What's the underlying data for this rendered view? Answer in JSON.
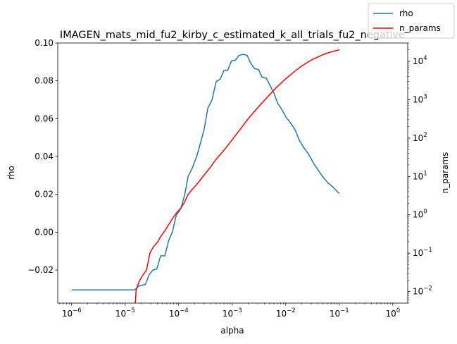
{
  "chart_data": {
    "type": "line",
    "title": "IMAGEN_mats_mid_fu2_kirby_c_estimated_k_all_trials_fu2_negative",
    "xlabel": "alpha",
    "ylabel": "rho",
    "y2label": "n_params",
    "xscale": "log",
    "y2scale": "log",
    "xlim": [
      5.5e-07,
      1.9
    ],
    "ylim": [
      -0.0375,
      0.1
    ],
    "y2lim": [
      0.005,
      30000
    ],
    "x_ticks": [
      {
        "value": 1e-06,
        "base": "10",
        "exp": "−6"
      },
      {
        "value": 1e-05,
        "base": "10",
        "exp": "−5"
      },
      {
        "value": 0.0001,
        "base": "10",
        "exp": "−4"
      },
      {
        "value": 0.001,
        "base": "10",
        "exp": "−3"
      },
      {
        "value": 0.01,
        "base": "10",
        "exp": "−2"
      },
      {
        "value": 0.1,
        "base": "10",
        "exp": "−1"
      },
      {
        "value": 1,
        "base": "10",
        "exp": "0"
      }
    ],
    "y_ticks": [
      {
        "value": -0.02,
        "label": "−0.02"
      },
      {
        "value": 0.0,
        "label": "0.00"
      },
      {
        "value": 0.02,
        "label": "0.02"
      },
      {
        "value": 0.04,
        "label": "0.04"
      },
      {
        "value": 0.06,
        "label": "0.06"
      },
      {
        "value": 0.08,
        "label": "0.08"
      },
      {
        "value": 0.1,
        "label": "0.10"
      }
    ],
    "y2_ticks": [
      {
        "value": 0.01,
        "base": "10",
        "exp": "−2"
      },
      {
        "value": 0.1,
        "base": "10",
        "exp": "−1"
      },
      {
        "value": 1,
        "base": "10",
        "exp": "0"
      },
      {
        "value": 10,
        "base": "10",
        "exp": "1"
      },
      {
        "value": 100,
        "base": "10",
        "exp": "2"
      },
      {
        "value": 1000,
        "base": "10",
        "exp": "3"
      },
      {
        "value": 10000,
        "base": "10",
        "exp": "4"
      }
    ],
    "legend_position": "top-right",
    "series": [
      {
        "name": "rho",
        "axis": "left",
        "color": "#1f77b4",
        "points": [
          [
            1e-06,
            -0.0305
          ],
          [
            2e-06,
            -0.0305
          ],
          [
            5e-06,
            -0.0305
          ],
          [
            1e-05,
            -0.0305
          ],
          [
            1.5e-05,
            -0.0305
          ],
          [
            1.8e-05,
            -0.0285
          ],
          [
            2.4e-05,
            -0.0275
          ],
          [
            2.8e-05,
            -0.0225
          ],
          [
            3.3e-05,
            -0.02
          ],
          [
            3.9e-05,
            -0.0195
          ],
          [
            4.6e-05,
            -0.0125
          ],
          [
            5.5e-05,
            -0.0125
          ],
          [
            6.5e-05,
            -0.0045
          ],
          [
            7.7e-05,
            0.0005
          ],
          [
            9e-05,
            0.009
          ],
          [
            0.00011,
            0.0125
          ],
          [
            0.00013,
            0.02
          ],
          [
            0.00015,
            0.0295
          ],
          [
            0.00018,
            0.034
          ],
          [
            0.00022,
            0.0405
          ],
          [
            0.00026,
            0.048
          ],
          [
            0.0003,
            0.0545
          ],
          [
            0.00035,
            0.0655
          ],
          [
            0.00042,
            0.07
          ],
          [
            0.0005,
            0.0795
          ],
          [
            0.0006,
            0.081
          ],
          [
            0.0007,
            0.0855
          ],
          [
            0.00082,
            0.0855
          ],
          [
            0.00097,
            0.0905
          ],
          [
            0.00115,
            0.091
          ],
          [
            0.00135,
            0.0935
          ],
          [
            0.0016,
            0.094
          ],
          [
            0.0019,
            0.0935
          ],
          [
            0.0022,
            0.0895
          ],
          [
            0.0026,
            0.0865
          ],
          [
            0.0031,
            0.086
          ],
          [
            0.0036,
            0.082
          ],
          [
            0.0043,
            0.0815
          ],
          [
            0.0051,
            0.0775
          ],
          [
            0.006,
            0.0735
          ],
          [
            0.0071,
            0.068
          ],
          [
            0.0084,
            0.065
          ],
          [
            0.01,
            0.061
          ],
          [
            0.0125,
            0.0575
          ],
          [
            0.015,
            0.054
          ],
          [
            0.018,
            0.0485
          ],
          [
            0.022,
            0.0445
          ],
          [
            0.027,
            0.041
          ],
          [
            0.033,
            0.0365
          ],
          [
            0.041,
            0.0325
          ],
          [
            0.05,
            0.029
          ],
          [
            0.062,
            0.026
          ],
          [
            0.075,
            0.024
          ],
          [
            0.085,
            0.0225
          ],
          [
            0.1,
            0.0205
          ]
        ]
      },
      {
        "name": "n_params",
        "axis": "right",
        "color": "#ff0000",
        "points": [
          [
            1.55e-05,
            0.005
          ],
          [
            1.6e-05,
            0.011
          ],
          [
            1.85e-05,
            0.019
          ],
          [
            2.1e-05,
            0.026
          ],
          [
            2.5e-05,
            0.036
          ],
          [
            2.9e-05,
            0.1
          ],
          [
            3.4e-05,
            0.15
          ],
          [
            4e-05,
            0.19
          ],
          [
            4.6e-05,
            0.27
          ],
          [
            5.5e-05,
            0.38
          ],
          [
            6.5e-05,
            0.55
          ],
          [
            7.7e-05,
            0.8
          ],
          [
            9e-05,
            1.1
          ],
          [
            0.00011,
            1.5
          ],
          [
            0.00013,
            2.2
          ],
          [
            0.00015,
            3.4
          ],
          [
            0.00018,
            4.6
          ],
          [
            0.00022,
            6.3
          ],
          [
            0.00026,
            8.5
          ],
          [
            0.0003,
            11
          ],
          [
            0.0004,
            18
          ],
          [
            0.0005,
            28
          ],
          [
            0.0007,
            48
          ],
          [
            0.001,
            90
          ],
          [
            0.0015,
            190
          ],
          [
            0.002,
            320
          ],
          [
            0.003,
            620
          ],
          [
            0.0045,
            1150
          ],
          [
            0.0065,
            2000
          ],
          [
            0.01,
            3500
          ],
          [
            0.015,
            5600
          ],
          [
            0.02,
            7600
          ],
          [
            0.03,
            10800
          ],
          [
            0.05,
            15000
          ],
          [
            0.07,
            17500
          ],
          [
            0.1,
            20000
          ]
        ]
      }
    ]
  }
}
